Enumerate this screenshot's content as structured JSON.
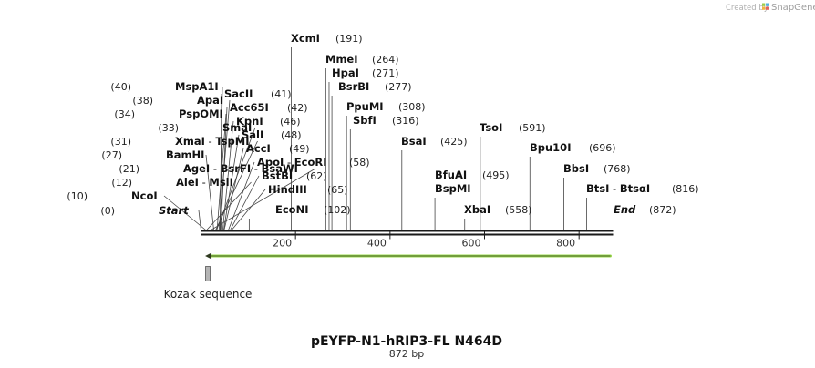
{
  "branding": {
    "credit": "Created by",
    "name": "SnapGene",
    "logo_colors": [
      "#9ccd4c",
      "#52b0e0",
      "#f4b33f",
      "#e0625f"
    ]
  },
  "map": {
    "title": "pEYFP-N1-hRIP3-FL N464D",
    "length_label": "872 bp",
    "length_bp": 872,
    "ticks": [
      200,
      400,
      600,
      800
    ],
    "feature": {
      "name": "Kozak sequence",
      "start": 1,
      "end": 6,
      "color": "#b4b4b4"
    },
    "orf": {
      "direction": "reverse",
      "start": 1,
      "end": 872,
      "color": "#9bdb4c"
    }
  },
  "left_labels": [
    {
      "pos": 0,
      "pos_label": "(0)",
      "parts": [
        "Start"
      ],
      "italic": true
    },
    {
      "pos": 10,
      "pos_label": "(10)",
      "parts": [
        "NcoI"
      ]
    },
    {
      "pos": 12,
      "pos_label": "(12)",
      "parts": [
        "AleI",
        "MslI"
      ]
    },
    {
      "pos": 21,
      "pos_label": "(21)",
      "parts": [
        "AgeI",
        "BsrFI",
        "BsaWI"
      ]
    },
    {
      "pos": 27,
      "pos_label": "(27)",
      "parts": [
        "BamHI"
      ]
    },
    {
      "pos": 31,
      "pos_label": "(31)",
      "parts": [
        "XmaI",
        "TspMI"
      ]
    },
    {
      "pos": 33,
      "pos_label": "(33)",
      "parts": [
        "SmaI"
      ]
    },
    {
      "pos": 34,
      "pos_label": "(34)",
      "parts": [
        "PspOMI"
      ]
    },
    {
      "pos": 38,
      "pos_label": "(38)",
      "parts": [
        "ApaI"
      ]
    },
    {
      "pos": 40,
      "pos_label": "(40)",
      "parts": [
        "MspA1I"
      ]
    }
  ],
  "right_labels": [
    {
      "pos": 41,
      "pos_label": "(41)",
      "parts": [
        "SacII"
      ]
    },
    {
      "pos": 42,
      "pos_label": "(42)",
      "parts": [
        "Acc65I"
      ]
    },
    {
      "pos": 46,
      "pos_label": "(46)",
      "parts": [
        "KpnI"
      ]
    },
    {
      "pos": 48,
      "pos_label": "(48)",
      "parts": [
        "SalI"
      ]
    },
    {
      "pos": 49,
      "pos_label": "(49)",
      "parts": [
        "AccI"
      ]
    },
    {
      "pos": 58,
      "pos_label": "(58)",
      "parts": [
        "ApoI",
        "EcoRI"
      ]
    },
    {
      "pos": 62,
      "pos_label": "(62)",
      "parts": [
        "BstBI"
      ]
    },
    {
      "pos": 65,
      "pos_label": "(65)",
      "parts": [
        "HindIII"
      ]
    }
  ],
  "other_labels": [
    {
      "pos": 102,
      "pos_label": "(102)",
      "parts": [
        "EcoNI"
      ]
    },
    {
      "pos": 191,
      "pos_label": "(191)",
      "parts": [
        "XcmI"
      ]
    },
    {
      "pos": 264,
      "pos_label": "(264)",
      "parts": [
        "MmeI"
      ]
    },
    {
      "pos": 271,
      "pos_label": "(271)",
      "parts": [
        "HpaI"
      ]
    },
    {
      "pos": 277,
      "pos_label": "(277)",
      "parts": [
        "BsrBI"
      ]
    },
    {
      "pos": 308,
      "pos_label": "(308)",
      "parts": [
        "PpuMI"
      ]
    },
    {
      "pos": 316,
      "pos_label": "(316)",
      "parts": [
        "SbfI"
      ]
    },
    {
      "pos": 425,
      "pos_label": "(425)",
      "parts": [
        "BsaI"
      ]
    },
    {
      "pos": 495,
      "pos_label": "(495)",
      "parts": [
        "BfuAI"
      ],
      "extra_parts": [
        "BspMI"
      ]
    },
    {
      "pos": 558,
      "pos_label": "(558)",
      "parts": [
        "XbaI"
      ]
    },
    {
      "pos": 591,
      "pos_label": "(591)",
      "parts": [
        "TsoI"
      ]
    },
    {
      "pos": 696,
      "pos_label": "(696)",
      "parts": [
        "Bpu10I"
      ]
    },
    {
      "pos": 768,
      "pos_label": "(768)",
      "parts": [
        "BbsI"
      ]
    },
    {
      "pos": 816,
      "pos_label": "(816)",
      "parts": [
        "BtsI",
        "BtsαI"
      ]
    },
    {
      "pos": 872,
      "pos_label": "(872)",
      "parts": [
        "End"
      ],
      "italic": true
    }
  ]
}
